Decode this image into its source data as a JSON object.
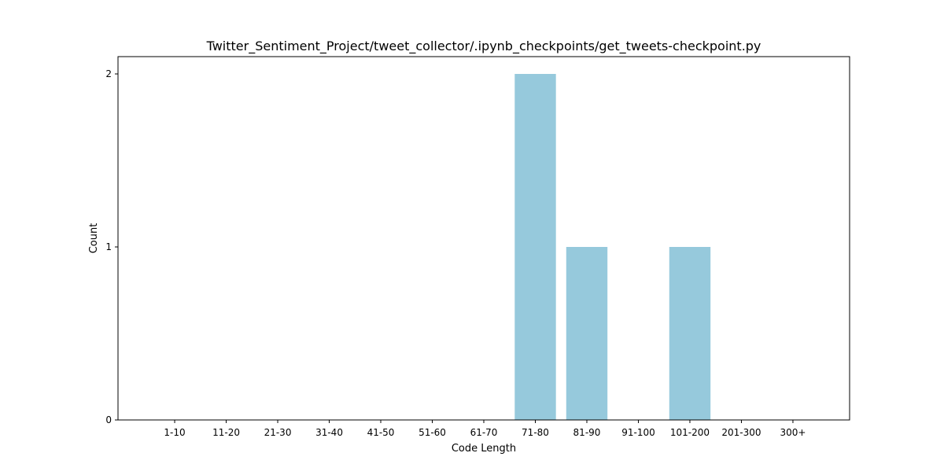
{
  "chart_data": {
    "type": "bar",
    "title": "Twitter_Sentiment_Project/tweet_collector/.ipynb_checkpoints/get_tweets-checkpoint.py",
    "xlabel": "Code Length",
    "ylabel": "Count",
    "categories": [
      "1-10",
      "11-20",
      "21-30",
      "31-40",
      "41-50",
      "51-60",
      "61-70",
      "71-80",
      "81-90",
      "91-100",
      "101-200",
      "201-300",
      "300+"
    ],
    "values": [
      0,
      0,
      0,
      0,
      0,
      0,
      0,
      2,
      1,
      0,
      1,
      0,
      0
    ],
    "ylim": [
      0,
      2.1
    ],
    "yticks": [
      0,
      1,
      2
    ],
    "bar_color": "#96c9dc",
    "grid": false,
    "legend": "none"
  }
}
